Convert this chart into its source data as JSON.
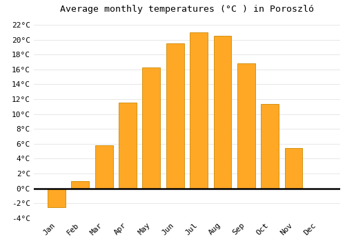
{
  "months": [
    "Jan",
    "Feb",
    "Mar",
    "Apr",
    "May",
    "Jun",
    "Jul",
    "Aug",
    "Sep",
    "Oct",
    "Nov",
    "Dec"
  ],
  "values": [
    -2.5,
    1.0,
    5.8,
    11.5,
    16.3,
    19.5,
    21.0,
    20.5,
    16.8,
    11.4,
    5.4,
    0.0
  ],
  "bar_color": "#FFA826",
  "bar_edge_color": "#CC8800",
  "title": "Average monthly temperatures (°C ) in Poroszló",
  "ylim": [
    -4,
    23
  ],
  "yticks": [
    -4,
    -2,
    0,
    2,
    4,
    6,
    8,
    10,
    12,
    14,
    16,
    18,
    20,
    22
  ],
  "background_color": "#ffffff",
  "grid_color": "#dddddd",
  "zero_line_color": "#000000",
  "title_fontsize": 9.5,
  "tick_fontsize": 8,
  "font_family": "monospace"
}
